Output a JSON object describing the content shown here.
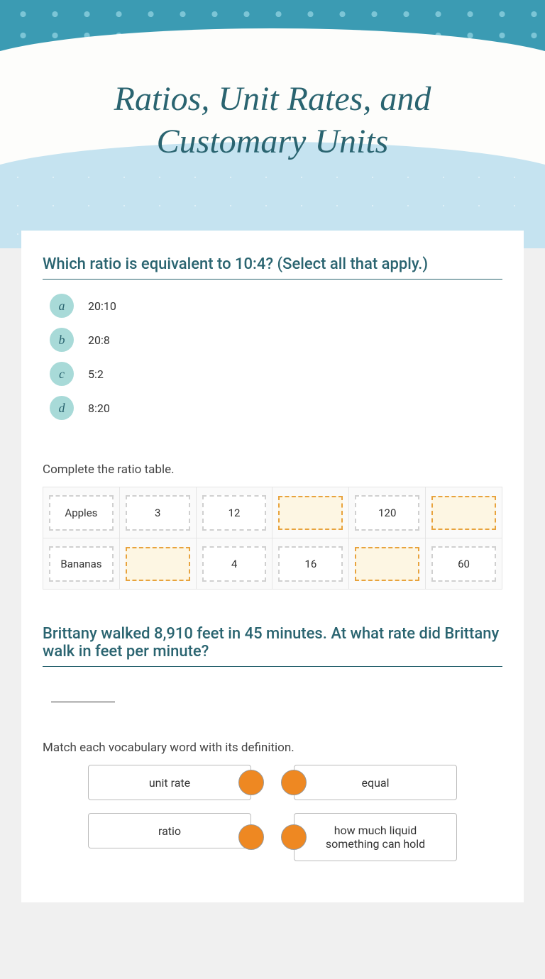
{
  "header": {
    "title": "Ratios, Unit Rates, and\nCustomary Units",
    "title_color": "#2a6470",
    "title_fontsize": 48,
    "bg_top_color": "#3b9bb3",
    "dot_color": "#7cc5d6",
    "wave_white": "#fdfdfb",
    "wave_blue": "#c5e3f0"
  },
  "q1": {
    "prompt": "Which ratio is equivalent to 10:4? (Select all that apply.)",
    "options": [
      {
        "letter": "a",
        "text": "20:10"
      },
      {
        "letter": "b",
        "text": "20:8"
      },
      {
        "letter": "c",
        "text": "5:2"
      },
      {
        "letter": "d",
        "text": "8:20"
      }
    ],
    "letter_bg": "#a8dad8",
    "letter_color": "#2a6470"
  },
  "q2": {
    "prompt": "Complete the ratio table.",
    "table": {
      "rows": [
        [
          {
            "text": "Apples",
            "blank": false
          },
          {
            "text": "3",
            "blank": false
          },
          {
            "text": "12",
            "blank": false
          },
          {
            "text": "",
            "blank": true
          },
          {
            "text": "120",
            "blank": false
          },
          {
            "text": "",
            "blank": true
          }
        ],
        [
          {
            "text": "Bananas",
            "blank": false
          },
          {
            "text": "",
            "blank": true
          },
          {
            "text": "4",
            "blank": false
          },
          {
            "text": "16",
            "blank": false
          },
          {
            "text": "",
            "blank": true
          },
          {
            "text": "60",
            "blank": false
          }
        ]
      ],
      "blank_border": "#e8a33d",
      "blank_bg": "#fdf6e3",
      "filled_border": "#d0d0d0",
      "filled_bg": "#ffffff"
    }
  },
  "q3": {
    "prompt": "Brittany walked 8,910 feet in 45 minutes. At what rate did Brittany walk in feet per minute?"
  },
  "q4": {
    "prompt": "Match each vocabulary word with its definition.",
    "left": [
      "unit rate",
      "ratio"
    ],
    "right": [
      "equal",
      "how much liquid something can hold"
    ],
    "dot_color": "#ee8822"
  },
  "style": {
    "heading_color": "#2a6470",
    "content_bg": "#ffffff",
    "body_font": "-apple-system, Segoe UI, Roboto, sans-serif"
  }
}
